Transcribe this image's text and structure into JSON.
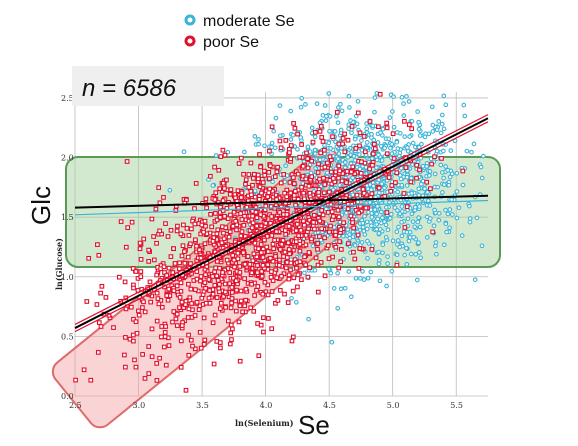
{
  "chart_data": {
    "type": "scatter",
    "n_label": "n = 6586",
    "xlabel_small": "ln(Selenium)",
    "xlabel_big": "Se",
    "ylabel_small": "ln(Glucose)",
    "ylabel_big": "Glc",
    "xlim": [
      2.5,
      5.75
    ],
    "ylim": [
      0.0,
      2.55
    ],
    "x_ticks": [
      "2.5",
      "3.0",
      "3.5",
      "4.0",
      "4.5",
      "5.0",
      "5.5"
    ],
    "x_tick_values": [
      2.5,
      3.0,
      3.5,
      4.0,
      4.5,
      5.0,
      5.5
    ],
    "y_ticks": [
      "0.0",
      "0.5",
      "1.0",
      "1.5",
      "2.0",
      "2.5"
    ],
    "y_tick_values": [
      0.0,
      0.5,
      1.0,
      1.5,
      2.0,
      2.5
    ],
    "grid": true,
    "legend_position": "top",
    "series": [
      {
        "name": "moderate Se",
        "color": "#3bb3d6",
        "center": [
          4.75,
          1.75
        ],
        "spread": [
          0.4,
          0.32
        ],
        "count": 1300
      },
      {
        "name": "poor Se",
        "color": "#e0102c",
        "center": [
          3.9,
          1.45
        ],
        "spread": [
          0.5,
          0.42
        ],
        "count": 1400
      }
    ],
    "fit_lines": [
      {
        "x": [
          2.5,
          5.75
        ],
        "y": [
          0.57,
          2.33
        ],
        "color": "#000000"
      },
      {
        "x": [
          2.5,
          5.75
        ],
        "y": [
          0.6,
          2.36
        ],
        "color": "#e0102c"
      },
      {
        "x": [
          2.5,
          5.75
        ],
        "y": [
          0.54,
          2.3
        ],
        "color": "#e0102c"
      },
      {
        "x": [
          2.5,
          5.75
        ],
        "y": [
          1.58,
          1.68
        ],
        "color": "#000000"
      },
      {
        "x": [
          2.5,
          5.75
        ],
        "y": [
          1.52,
          1.64
        ],
        "color": "#3bb3d6"
      }
    ],
    "regions": [
      {
        "label": "moderate Se",
        "color": "#a8d4a0"
      },
      {
        "label": "poor Se",
        "color": "#f4a0a0"
      }
    ]
  }
}
